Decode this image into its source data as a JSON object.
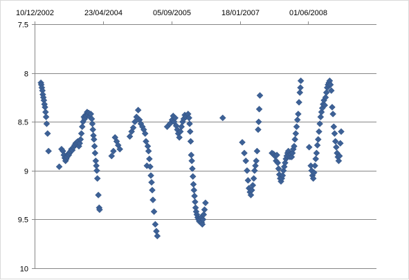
{
  "chart_data": {
    "type": "scatter",
    "title": "",
    "xlabel": "",
    "ylabel": "",
    "x_axis": {
      "position": "top",
      "min": "2002-12-10",
      "max": "2009-10-13",
      "ticks": [
        "10/12/2002",
        "23/04/2004",
        "05/09/2005",
        "18/01/2007",
        "01/06/2008"
      ],
      "tick_dates": [
        "2002-12-10",
        "2004-04-23",
        "2005-09-05",
        "2007-01-18",
        "2008-06-01"
      ]
    },
    "y_axis": {
      "reversed": true,
      "min": 7.5,
      "max": 10,
      "ticks": [
        "7.5",
        "8",
        "8.5",
        "9",
        "9.5",
        "10"
      ],
      "tick_values": [
        7.5,
        8,
        8.5,
        9,
        9.5,
        10
      ]
    },
    "grid": {
      "horizontal": true,
      "vertical": false
    },
    "legend": "none",
    "marker": {
      "shape": "diamond",
      "color": "#3d6196"
    },
    "series": [
      {
        "points": [
          [
            "2003-01-25",
            8.1
          ],
          [
            "2003-01-28",
            8.12
          ],
          [
            "2003-02-01",
            8.15
          ],
          [
            "2003-02-05",
            8.18
          ],
          [
            "2003-02-08",
            8.22
          ],
          [
            "2003-02-12",
            8.25
          ],
          [
            "2003-02-16",
            8.28
          ],
          [
            "2003-02-20",
            8.32
          ],
          [
            "2003-02-24",
            8.35
          ],
          [
            "2003-02-28",
            8.4
          ],
          [
            "2003-03-04",
            8.45
          ],
          [
            "2003-03-08",
            8.52
          ],
          [
            "2003-03-15",
            8.62
          ],
          [
            "2003-03-22",
            8.8
          ],
          [
            "2003-06-08",
            8.96
          ],
          [
            "2003-06-25",
            8.78
          ],
          [
            "2003-07-05",
            8.8
          ],
          [
            "2003-07-12",
            8.84
          ],
          [
            "2003-07-18",
            8.87
          ],
          [
            "2003-07-24",
            8.9
          ],
          [
            "2003-07-30",
            8.88
          ],
          [
            "2003-08-05",
            8.86
          ],
          [
            "2003-08-11",
            8.83
          ],
          [
            "2003-08-17",
            8.84
          ],
          [
            "2003-08-23",
            8.82
          ],
          [
            "2003-08-30",
            8.8
          ],
          [
            "2003-09-05",
            8.78
          ],
          [
            "2003-09-12",
            8.79
          ],
          [
            "2003-09-20",
            8.76
          ],
          [
            "2003-09-28",
            8.74
          ],
          [
            "2003-10-06",
            8.72
          ],
          [
            "2003-10-14",
            8.71
          ],
          [
            "2003-10-22",
            8.7
          ],
          [
            "2003-10-30",
            8.75
          ],
          [
            "2003-11-05",
            8.72
          ],
          [
            "2003-11-11",
            8.68
          ],
          [
            "2003-11-17",
            8.62
          ],
          [
            "2003-11-23",
            8.55
          ],
          [
            "2003-11-29",
            8.5
          ],
          [
            "2003-12-05",
            8.45
          ],
          [
            "2003-12-11",
            8.47
          ],
          [
            "2003-12-17",
            8.43
          ],
          [
            "2003-12-23",
            8.44
          ],
          [
            "2003-12-29",
            8.4
          ],
          [
            "2004-01-04",
            8.43
          ],
          [
            "2004-01-10",
            8.41
          ],
          [
            "2004-01-18",
            8.45
          ],
          [
            "2004-01-25",
            8.42
          ],
          [
            "2004-02-01",
            8.47
          ],
          [
            "2004-02-05",
            8.52
          ],
          [
            "2004-02-09",
            8.58
          ],
          [
            "2004-02-13",
            8.64
          ],
          [
            "2004-02-17",
            8.68
          ],
          [
            "2004-02-21",
            8.75
          ],
          [
            "2004-02-25",
            8.82
          ],
          [
            "2004-03-01",
            8.9
          ],
          [
            "2004-03-05",
            8.95
          ],
          [
            "2004-03-09",
            9.0
          ],
          [
            "2004-03-13",
            9.08
          ],
          [
            "2004-03-20",
            9.25
          ],
          [
            "2004-03-26",
            9.38
          ],
          [
            "2004-03-29",
            9.4
          ],
          [
            "2004-06-25",
            8.85
          ],
          [
            "2004-07-08",
            8.8
          ],
          [
            "2004-07-20",
            8.66
          ],
          [
            "2004-08-01",
            8.7
          ],
          [
            "2004-08-12",
            8.74
          ],
          [
            "2004-08-24",
            8.78
          ],
          [
            "2004-11-05",
            8.65
          ],
          [
            "2004-11-18",
            8.6
          ],
          [
            "2004-11-30",
            8.56
          ],
          [
            "2004-12-12",
            8.5
          ],
          [
            "2004-12-24",
            8.45
          ],
          [
            "2005-01-05",
            8.38
          ],
          [
            "2005-01-15",
            8.48
          ],
          [
            "2005-01-25",
            8.52
          ],
          [
            "2005-02-05",
            8.55
          ],
          [
            "2005-02-15",
            8.58
          ],
          [
            "2005-02-25",
            8.62
          ],
          [
            "2005-03-03",
            8.7
          ],
          [
            "2005-03-10",
            8.95
          ],
          [
            "2005-03-16",
            8.75
          ],
          [
            "2005-03-22",
            8.8
          ],
          [
            "2005-03-28",
            8.88
          ],
          [
            "2005-04-03",
            8.96
          ],
          [
            "2005-04-08",
            9.05
          ],
          [
            "2005-04-13",
            9.12
          ],
          [
            "2005-04-18",
            9.2
          ],
          [
            "2005-04-23",
            9.3
          ],
          [
            "2005-05-01",
            9.42
          ],
          [
            "2005-05-10",
            9.55
          ],
          [
            "2005-05-18",
            9.62
          ],
          [
            "2005-05-25",
            9.67
          ],
          [
            "2005-08-05",
            8.55
          ],
          [
            "2005-08-25",
            8.52
          ],
          [
            "2005-09-10",
            8.48
          ],
          [
            "2005-09-18",
            8.44
          ],
          [
            "2005-09-25",
            8.5
          ],
          [
            "2005-10-03",
            8.46
          ],
          [
            "2005-10-10",
            8.54
          ],
          [
            "2005-10-18",
            8.58
          ],
          [
            "2005-10-25",
            8.62
          ],
          [
            "2005-11-02",
            8.66
          ],
          [
            "2005-11-10",
            8.6
          ],
          [
            "2005-11-18",
            8.55
          ],
          [
            "2005-11-26",
            8.5
          ],
          [
            "2005-12-04",
            8.47
          ],
          [
            "2005-12-12",
            8.43
          ],
          [
            "2005-12-20",
            8.45
          ],
          [
            "2006-01-05",
            8.42
          ],
          [
            "2006-01-12",
            8.46
          ],
          [
            "2006-01-16",
            8.52
          ],
          [
            "2006-01-20",
            8.6
          ],
          [
            "2006-01-24",
            8.7
          ],
          [
            "2006-01-28",
            8.84
          ],
          [
            "2006-02-01",
            8.9
          ],
          [
            "2006-02-05",
            8.98
          ],
          [
            "2006-02-09",
            9.06
          ],
          [
            "2006-02-13",
            9.14
          ],
          [
            "2006-02-17",
            9.2
          ],
          [
            "2006-02-21",
            9.26
          ],
          [
            "2006-02-25",
            9.32
          ],
          [
            "2006-03-01",
            9.38
          ],
          [
            "2006-03-05",
            9.42
          ],
          [
            "2006-03-10",
            9.45
          ],
          [
            "2006-03-16",
            9.48
          ],
          [
            "2006-03-22",
            9.5
          ],
          [
            "2006-03-28",
            9.52
          ],
          [
            "2006-04-03",
            9.5
          ],
          [
            "2006-04-09",
            9.48
          ],
          [
            "2006-04-14",
            9.53
          ],
          [
            "2006-04-19",
            9.55
          ],
          [
            "2006-04-24",
            9.5
          ],
          [
            "2006-04-29",
            9.45
          ],
          [
            "2006-05-05",
            9.4
          ],
          [
            "2006-05-12",
            9.33
          ],
          [
            "2006-09-15",
            8.46
          ],
          [
            "2007-02-05",
            8.71
          ],
          [
            "2007-02-20",
            8.82
          ],
          [
            "2007-03-03",
            8.9
          ],
          [
            "2007-03-12",
            9.0
          ],
          [
            "2007-03-19",
            9.1
          ],
          [
            "2007-03-26",
            9.18
          ],
          [
            "2007-04-02",
            9.22
          ],
          [
            "2007-04-09",
            9.25
          ],
          [
            "2007-04-16",
            9.2
          ],
          [
            "2007-04-23",
            9.15
          ],
          [
            "2007-04-30",
            9.08
          ],
          [
            "2007-05-06",
            9.0
          ],
          [
            "2007-05-12",
            8.95
          ],
          [
            "2007-05-18",
            8.9
          ],
          [
            "2007-05-24",
            8.8
          ],
          [
            "2007-06-01",
            8.58
          ],
          [
            "2007-06-05",
            8.5
          ],
          [
            "2007-06-09",
            8.37
          ],
          [
            "2007-06-14",
            8.23
          ],
          [
            "2007-09-10",
            8.82
          ],
          [
            "2007-09-22",
            8.83
          ],
          [
            "2007-10-01",
            8.85
          ],
          [
            "2007-10-10",
            8.9
          ],
          [
            "2007-10-16",
            8.84
          ],
          [
            "2007-10-22",
            8.92
          ],
          [
            "2007-10-28",
            8.98
          ],
          [
            "2007-11-03",
            9.04
          ],
          [
            "2007-11-09",
            9.08
          ],
          [
            "2007-11-15",
            9.11
          ],
          [
            "2007-11-21",
            9.08
          ],
          [
            "2007-11-27",
            9.05
          ],
          [
            "2007-12-03",
            9.0
          ],
          [
            "2007-12-09",
            8.96
          ],
          [
            "2007-12-15",
            8.92
          ],
          [
            "2007-12-21",
            8.88
          ],
          [
            "2007-12-27",
            8.85
          ],
          [
            "2008-01-02",
            8.82
          ],
          [
            "2008-01-08",
            8.8
          ],
          [
            "2008-01-14",
            8.84
          ],
          [
            "2008-01-20",
            8.86
          ],
          [
            "2008-01-26",
            8.83
          ],
          [
            "2008-02-01",
            8.86
          ],
          [
            "2008-02-07",
            8.82
          ],
          [
            "2008-02-13",
            8.78
          ],
          [
            "2008-02-19",
            8.75
          ],
          [
            "2008-02-25",
            8.68
          ],
          [
            "2008-03-02",
            8.62
          ],
          [
            "2008-03-08",
            8.55
          ],
          [
            "2008-03-14",
            8.48
          ],
          [
            "2008-03-20",
            8.42
          ],
          [
            "2008-03-26",
            8.3
          ],
          [
            "2008-04-01",
            8.2
          ],
          [
            "2008-04-05",
            8.15
          ],
          [
            "2008-04-08",
            8.08
          ],
          [
            "2008-06-08",
            8.76
          ],
          [
            "2008-06-20",
            8.95
          ],
          [
            "2008-06-26",
            9.0
          ],
          [
            "2008-07-02",
            9.05
          ],
          [
            "2008-07-08",
            9.08
          ],
          [
            "2008-07-14",
            9.02
          ],
          [
            "2008-07-20",
            8.95
          ],
          [
            "2008-07-26",
            8.88
          ],
          [
            "2008-08-01",
            8.82
          ],
          [
            "2008-08-07",
            8.74
          ],
          [
            "2008-08-13",
            8.68
          ],
          [
            "2008-08-19",
            8.6
          ],
          [
            "2008-08-25",
            8.52
          ],
          [
            "2008-08-31",
            8.45
          ],
          [
            "2008-09-06",
            8.4
          ],
          [
            "2008-09-12",
            8.36
          ],
          [
            "2008-09-18",
            8.32
          ],
          [
            "2008-09-24",
            8.28
          ],
          [
            "2008-09-30",
            8.33
          ],
          [
            "2008-10-06",
            8.25
          ],
          [
            "2008-10-12",
            8.2
          ],
          [
            "2008-10-18",
            8.15
          ],
          [
            "2008-10-24",
            8.12
          ],
          [
            "2008-10-30",
            8.1
          ],
          [
            "2008-11-05",
            8.08
          ],
          [
            "2008-11-11",
            8.12
          ],
          [
            "2008-11-17",
            8.18
          ],
          [
            "2008-11-23",
            8.35
          ],
          [
            "2008-11-29",
            8.42
          ],
          [
            "2008-12-05",
            8.55
          ],
          [
            "2008-12-11",
            8.62
          ],
          [
            "2008-12-17",
            8.7
          ],
          [
            "2008-12-23",
            8.76
          ],
          [
            "2008-12-29",
            8.82
          ],
          [
            "2009-01-04",
            8.86
          ],
          [
            "2009-01-10",
            8.9
          ],
          [
            "2009-01-16",
            8.85
          ],
          [
            "2009-01-22",
            8.72
          ],
          [
            "2009-01-28",
            8.6
          ]
        ]
      }
    ]
  }
}
